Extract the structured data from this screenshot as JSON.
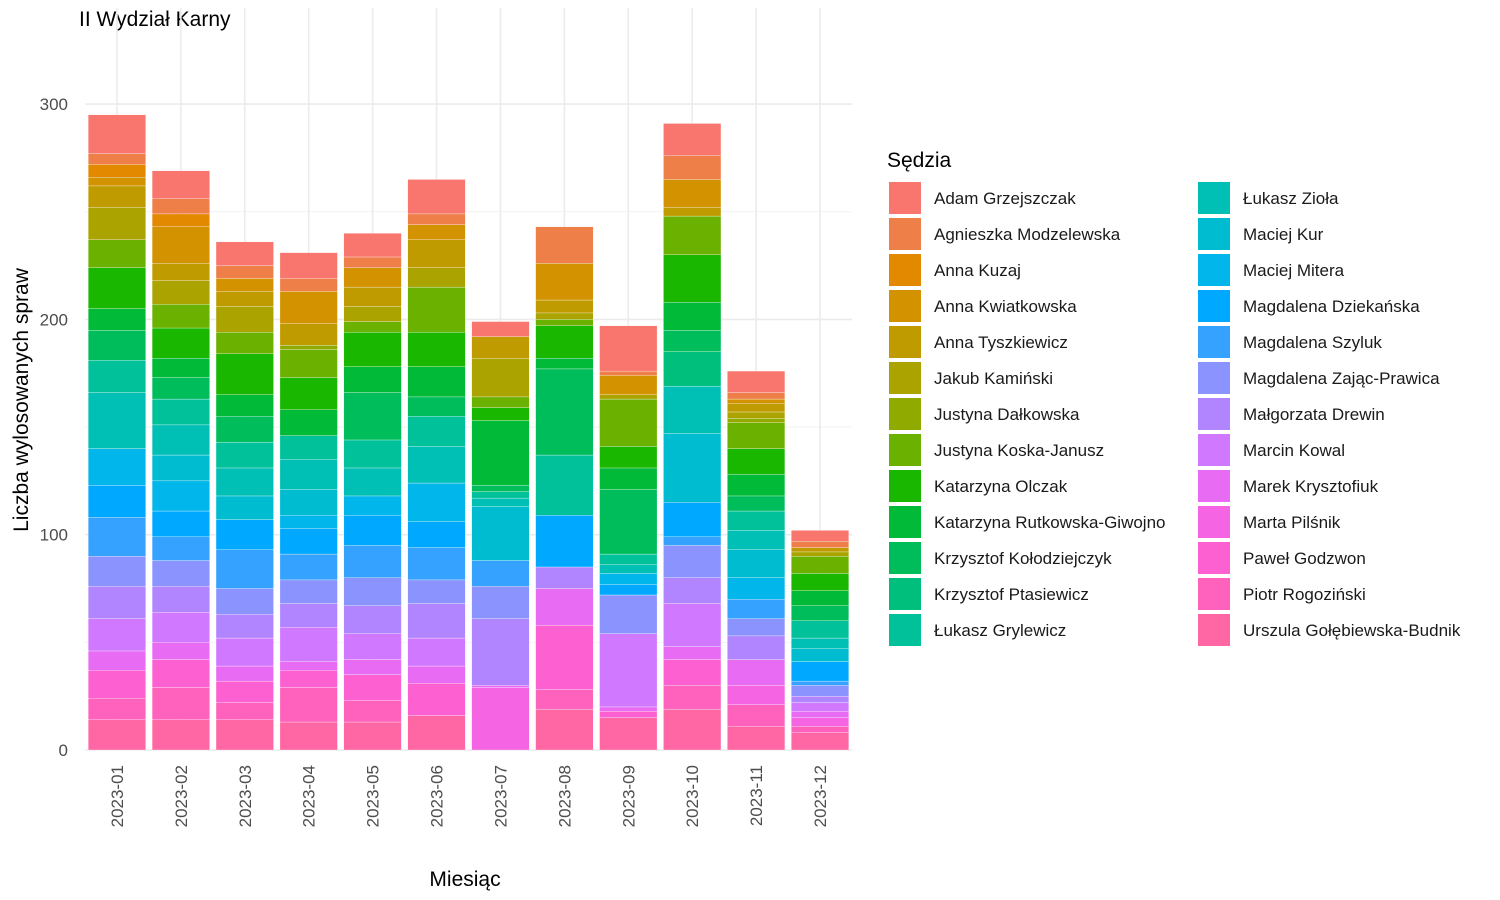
{
  "chart_data": {
    "type": "bar",
    "stacked": true,
    "title": "II Wydział Karny",
    "xlabel": "Miesiąc",
    "ylabel": "Liczba wylosowanych spraw",
    "ylim": [
      0,
      330
    ],
    "yticks": [
      0,
      100,
      200,
      300
    ],
    "grid": true,
    "legend_title": "Sędzia",
    "legend_position": "right",
    "categories": [
      "2023-01",
      "2023-02",
      "2023-03",
      "2023-04",
      "2023-05",
      "2023-06",
      "2023-07",
      "2023-08",
      "2023-09",
      "2023-10",
      "2023-11",
      "2023-12"
    ],
    "series": [
      {
        "name": "Adam Grzejszczak",
        "color": "#F8766D",
        "values": [
          18,
          13,
          11,
          12,
          11,
          16,
          7,
          0,
          21,
          15,
          10,
          5
        ]
      },
      {
        "name": "Agnieszka Modzelewska",
        "color": "#EF7F49",
        "values": [
          5,
          7,
          6,
          6,
          5,
          5,
          0,
          17,
          2,
          11,
          3,
          3
        ]
      },
      {
        "name": "Anna Kuzaj",
        "color": "#E38900",
        "values": [
          6,
          6,
          0,
          0,
          0,
          0,
          0,
          0,
          0,
          0,
          0,
          0
        ]
      },
      {
        "name": "Anna Kwiatkowska",
        "color": "#D39200",
        "values": [
          4,
          17,
          6,
          15,
          9,
          7,
          0,
          17,
          9,
          13,
          2,
          0
        ]
      },
      {
        "name": "Anna Tyszkiewicz",
        "color": "#C09B00",
        "values": [
          10,
          8,
          7,
          10,
          9,
          13,
          10,
          6,
          0,
          4,
          4,
          2
        ]
      },
      {
        "name": "Jakub Kamiński",
        "color": "#AAA300",
        "values": [
          15,
          11,
          12,
          0,
          7,
          9,
          18,
          3,
          2,
          0,
          3,
          2
        ]
      },
      {
        "name": "Justyna Dałkowska",
        "color": "#91AA00",
        "values": [
          0,
          0,
          0,
          2,
          0,
          0,
          0,
          0,
          0,
          0,
          2,
          0
        ]
      },
      {
        "name": "Justyna Koska-Janusz",
        "color": "#6BB100",
        "values": [
          13,
          11,
          10,
          13,
          5,
          21,
          5,
          3,
          22,
          18,
          12,
          8
        ]
      },
      {
        "name": "Katarzyna Olczak",
        "color": "#1AB700",
        "values": [
          19,
          14,
          19,
          15,
          16,
          16,
          6,
          15,
          10,
          22,
          12,
          8
        ]
      },
      {
        "name": "Katarzyna Rutkowska-Giwojno",
        "color": "#00BA38",
        "values": [
          10,
          9,
          10,
          12,
          12,
          14,
          30,
          5,
          10,
          13,
          10,
          7
        ]
      },
      {
        "name": "Krzysztof Kołodziejczyk",
        "color": "#00BD5C",
        "values": [
          14,
          10,
          12,
          0,
          22,
          9,
          3,
          40,
          30,
          10,
          7,
          7
        ]
      },
      {
        "name": "Krzysztof Ptasiewicz",
        "color": "#00BF7D",
        "values": [
          0,
          0,
          0,
          0,
          0,
          0,
          0,
          0,
          0,
          16,
          0,
          0
        ]
      },
      {
        "name": "Łukasz Grylewicz",
        "color": "#00C19A",
        "values": [
          15,
          12,
          12,
          11,
          13,
          14,
          3,
          28,
          5,
          0,
          9,
          8
        ]
      },
      {
        "name": "Łukasz Zioła",
        "color": "#00C0B5",
        "values": [
          26,
          14,
          13,
          14,
          13,
          17,
          4,
          0,
          4,
          22,
          9,
          5
        ]
      },
      {
        "name": "Maciej Kur",
        "color": "#00BCD1",
        "values": [
          0,
          12,
          11,
          12,
          0,
          0,
          25,
          0,
          0,
          32,
          13,
          6
        ]
      },
      {
        "name": "Maciej Mitera",
        "color": "#00B6EB",
        "values": [
          17,
          14,
          0,
          6,
          9,
          18,
          0,
          0,
          5,
          0,
          10,
          0
        ]
      },
      {
        "name": "Magdalena Dziekańska",
        "color": "#00A9FF",
        "values": [
          15,
          12,
          14,
          12,
          14,
          12,
          0,
          24,
          5,
          16,
          0,
          9
        ]
      },
      {
        "name": "Magdalena Szyluk",
        "color": "#35A2FF",
        "values": [
          18,
          11,
          18,
          12,
          15,
          15,
          12,
          0,
          0,
          4,
          9,
          2
        ]
      },
      {
        "name": "Magdalena Zając-Prawica",
        "color": "#8B93FF",
        "values": [
          14,
          12,
          12,
          11,
          13,
          11,
          15,
          0,
          18,
          15,
          8,
          5
        ]
      },
      {
        "name": "Małgorzata Drewin",
        "color": "#B185FF",
        "values": [
          15,
          12,
          11,
          11,
          13,
          16,
          31,
          10,
          0,
          12,
          11,
          3
        ]
      },
      {
        "name": "Marcin Kowal",
        "color": "#D078FF",
        "values": [
          15,
          14,
          13,
          16,
          12,
          13,
          0,
          0,
          34,
          20,
          0,
          4
        ]
      },
      {
        "name": "Marek Krysztofiuk",
        "color": "#E76BF3",
        "values": [
          9,
          8,
          7,
          4,
          7,
          8,
          1,
          17,
          2,
          6,
          12,
          3
        ]
      },
      {
        "name": "Marta Pilśnik",
        "color": "#F564E3",
        "values": [
          0,
          0,
          0,
          0,
          0,
          0,
          29,
          0,
          0,
          0,
          9,
          4
        ]
      },
      {
        "name": "Paweł Godzwon",
        "color": "#FD61D1",
        "values": [
          13,
          13,
          10,
          8,
          12,
          15,
          0,
          30,
          3,
          12,
          0,
          0
        ]
      },
      {
        "name": "Piotr Rogoziński",
        "color": "#FF62BC",
        "values": [
          10,
          15,
          8,
          16,
          10,
          0,
          0,
          9,
          0,
          11,
          10,
          3
        ]
      },
      {
        "name": "Urszula Gołębiewska-Budnik",
        "color": "#FF67A4",
        "values": [
          14,
          14,
          14,
          13,
          13,
          16,
          0,
          19,
          15,
          19,
          11,
          8
        ]
      }
    ]
  }
}
